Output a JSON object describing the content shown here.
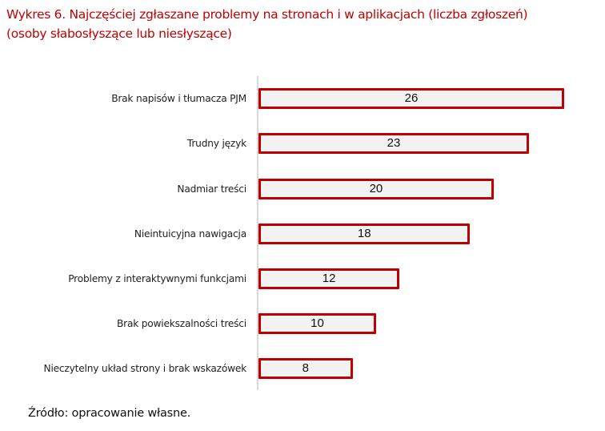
{
  "title": {
    "line1": "Wykres 6. Najczęściej zgłaszane problemy na stronach i w aplikacjach (liczba zgłoszeń)",
    "line2": "(osoby słabosłyszące lub niesłyszące)"
  },
  "source": "Źródło: opracowanie własne.",
  "colors": {
    "title": "#c00000",
    "bar_border": "#c00000",
    "bar_fill": "#f2f2f2",
    "axis": "#d9d9d9"
  },
  "chart_data": {
    "type": "bar",
    "orientation": "horizontal",
    "title": "Wykres 6. Najczęściej zgłaszane problemy na stronach i w aplikacjach (liczba zgłoszeń) (osoby słabosłyszące lub niesłyszące)",
    "xlabel": "",
    "ylabel": "",
    "categories": [
      "Brak napisów i tłumacza PJM",
      "Trudny język",
      "Nadmiar treści",
      "Nieintuicyjna nawigacja",
      "Problemy z interaktywnymi funkcjami",
      "Brak powiekszalności treści",
      "Nieczytelny układ strony i brak wskazówek"
    ],
    "values": [
      26,
      23,
      20,
      18,
      12,
      10,
      8
    ],
    "data_labels": [
      "26",
      "23",
      "20",
      "18",
      "12",
      "10",
      "8"
    ],
    "grid": false,
    "legend": null,
    "source": "Źródło: opracowanie własne."
  }
}
